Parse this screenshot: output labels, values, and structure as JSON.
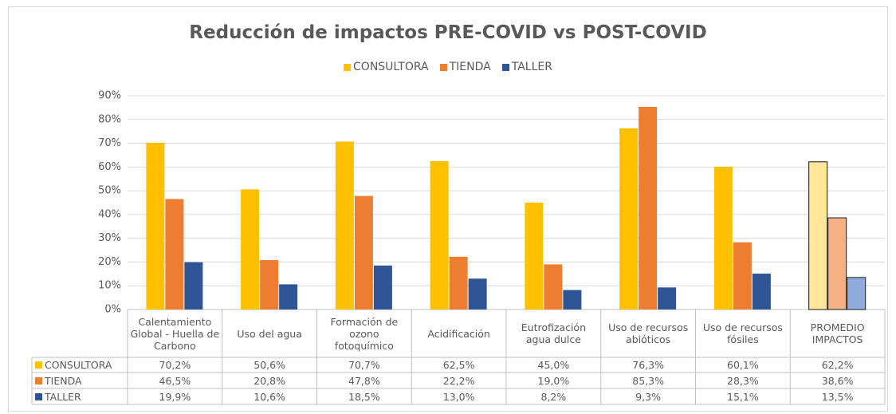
{
  "chart_data": {
    "type": "bar",
    "title": "Reducción de impactos PRE-COVID vs POST-COVID",
    "categories": [
      "Calentamiento Global - Huella de Carbono",
      "Uso del agua",
      "Formación de ozono fotoquímico",
      "Acidificación",
      "Eutrofización agua dulce",
      "Uso de recursos abióticos",
      "Uso de recursos fósiles",
      "PROMEDIO IMPACTOS"
    ],
    "series": [
      {
        "name": "CONSULTORA",
        "color": "#ffc000",
        "highlight_color": "#ffe699",
        "values": [
          70.2,
          50.6,
          70.7,
          62.5,
          45.0,
          76.3,
          60.1,
          62.2
        ],
        "value_labels": [
          "70,2%",
          "50,6%",
          "70,7%",
          "62,5%",
          "45,0%",
          "76,3%",
          "60,1%",
          "62,2%"
        ]
      },
      {
        "name": "TIENDA",
        "color": "#ed7d31",
        "highlight_color": "#f4b183",
        "values": [
          46.5,
          20.8,
          47.8,
          22.2,
          19.0,
          85.3,
          28.3,
          38.6
        ],
        "value_labels": [
          "46,5%",
          "20,8%",
          "47,8%",
          "22,2%",
          "19,0%",
          "85,3%",
          "28,3%",
          "38,6%"
        ]
      },
      {
        "name": "TALLER",
        "color": "#2f5597",
        "highlight_color": "#8faadc",
        "values": [
          19.9,
          10.6,
          18.5,
          13.0,
          8.2,
          9.3,
          15.1,
          13.5
        ],
        "value_labels": [
          "19,9%",
          "10,6%",
          "18,5%",
          "13,0%",
          "8,2%",
          "9,3%",
          "15,1%",
          "13,5%"
        ]
      }
    ],
    "ylim": [
      0,
      90
    ],
    "yticks": [
      {
        "value": 0,
        "label": "0%"
      },
      {
        "value": 10,
        "label": "10%"
      },
      {
        "value": 20,
        "label": "20%"
      },
      {
        "value": 30,
        "label": "30%"
      },
      {
        "value": 40,
        "label": "40%"
      },
      {
        "value": 50,
        "label": "50%"
      },
      {
        "value": 60,
        "label": "60%"
      },
      {
        "value": 70,
        "label": "70%"
      },
      {
        "value": 80,
        "label": "80%"
      },
      {
        "value": 90,
        "label": "90%"
      }
    ],
    "grid": true
  }
}
